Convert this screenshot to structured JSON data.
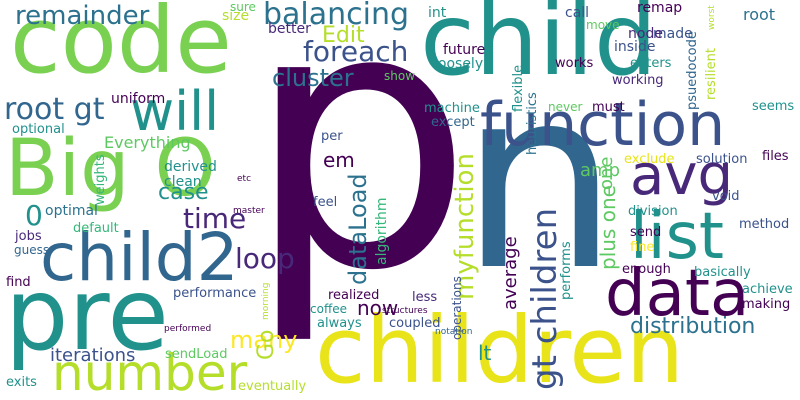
{
  "words": [
    {
      "text": "p",
      "color": "#440154"
    },
    {
      "text": "n",
      "color": "#31668e"
    },
    {
      "text": "child",
      "color": "#21918c"
    },
    {
      "text": "code",
      "color": "#7ad151"
    },
    {
      "text": "children",
      "color": "#e8e419"
    },
    {
      "text": "pre",
      "color": "#21918c"
    },
    {
      "text": "Big O",
      "color": "#7ad151"
    },
    {
      "text": "child2",
      "color": "#31668e"
    },
    {
      "text": "function",
      "color": "#3b528b"
    },
    {
      "text": "data",
      "color": "#440154"
    },
    {
      "text": "list",
      "color": "#21918c"
    },
    {
      "text": "avg",
      "color": "#482878"
    },
    {
      "text": "number",
      "color": "#b5de2b"
    },
    {
      "text": "will",
      "color": "#21918c"
    },
    {
      "text": "remainder",
      "color": "#2c728e"
    },
    {
      "text": "balancing",
      "color": "#2c728e"
    },
    {
      "text": "foreach",
      "color": "#3b528b"
    },
    {
      "text": "cluster",
      "color": "#2c728e"
    },
    {
      "text": "root gt",
      "color": "#31668e"
    },
    {
      "text": "Edit",
      "color": "#b5de2b"
    },
    {
      "text": "loop",
      "color": "#482878"
    },
    {
      "text": "time",
      "color": "#482878"
    },
    {
      "text": "case",
      "color": "#21918c"
    },
    {
      "text": "many",
      "color": "#fde725"
    },
    {
      "text": "distribution",
      "color": "#2c728e"
    },
    {
      "text": "gt children",
      "color": "#3b528b"
    },
    {
      "text": "myfunction",
      "color": "#b5de2b"
    },
    {
      "text": "dataLoad",
      "color": "#2c728e"
    },
    {
      "text": "now",
      "color": "#440154"
    },
    {
      "text": "lt",
      "color": "#21918c"
    },
    {
      "text": "Go",
      "color": "#b5de2b"
    },
    {
      "text": "em",
      "color": "#440154"
    },
    {
      "text": "average",
      "color": "#440154"
    },
    {
      "text": "plus one",
      "color": "#5ec962"
    },
    {
      "text": "iterations",
      "color": "#3b528b"
    },
    {
      "text": "amp",
      "color": "#5ec962"
    },
    {
      "text": "Everything",
      "color": "#5ec962"
    },
    {
      "text": "algorithm",
      "color": "#35b779"
    },
    {
      "text": "0",
      "color": "#21918c"
    },
    {
      "text": "root",
      "color": "#2c728e"
    },
    {
      "text": "uniform",
      "color": "#440154"
    },
    {
      "text": "optimal",
      "color": "#2c728e"
    },
    {
      "text": "derived",
      "color": "#21918c"
    },
    {
      "text": "clean",
      "color": "#21918c"
    },
    {
      "text": "made",
      "color": "#3b528b"
    },
    {
      "text": "size",
      "color": "#b5de2b"
    },
    {
      "text": "sure",
      "color": "#5ec962"
    },
    {
      "text": "int",
      "color": "#21918c"
    },
    {
      "text": "call",
      "color": "#3b528b"
    },
    {
      "text": "remap",
      "color": "#440154"
    },
    {
      "text": "better",
      "color": "#482878"
    },
    {
      "text": "node",
      "color": "#482878"
    },
    {
      "text": "inside",
      "color": "#3b528b"
    },
    {
      "text": "future",
      "color": "#440154"
    },
    {
      "text": "loosely",
      "color": "#21918c"
    },
    {
      "text": "move",
      "color": "#5ec962"
    },
    {
      "text": "enters",
      "color": "#21918c"
    },
    {
      "text": "works",
      "color": "#440154"
    },
    {
      "text": "psuedocode",
      "color": "#31668e"
    },
    {
      "text": "resilient",
      "color": "#b5de2b"
    },
    {
      "text": "worst",
      "color": "#b5de2b"
    },
    {
      "text": "show",
      "color": "#5ec962"
    },
    {
      "text": "flexible",
      "color": "#21918c"
    },
    {
      "text": "working",
      "color": "#482878"
    },
    {
      "text": "machine",
      "color": "#21918c"
    },
    {
      "text": "heuristics",
      "color": "#2c728e"
    },
    {
      "text": "never",
      "color": "#5ec962"
    },
    {
      "text": "must",
      "color": "#440154"
    },
    {
      "text": "seems",
      "color": "#21918c"
    },
    {
      "text": "except",
      "color": "#31668e"
    },
    {
      "text": "exclude",
      "color": "#e8e419"
    },
    {
      "text": "solution",
      "color": "#3b528b"
    },
    {
      "text": "files",
      "color": "#440154"
    },
    {
      "text": "per",
      "color": "#3b528b"
    },
    {
      "text": "division",
      "color": "#21918c"
    },
    {
      "text": "method",
      "color": "#3b528b"
    },
    {
      "text": "void",
      "color": "#3b528b"
    },
    {
      "text": "feel",
      "color": "#3b528b"
    },
    {
      "text": "one",
      "color": "#5ec962"
    },
    {
      "text": "send",
      "color": "#440154"
    },
    {
      "text": "fine",
      "color": "#fde725"
    },
    {
      "text": "performs",
      "color": "#21918c"
    },
    {
      "text": "enough",
      "color": "#440154"
    },
    {
      "text": "basically",
      "color": "#21918c"
    },
    {
      "text": "achieve",
      "color": "#21918c"
    },
    {
      "text": "making",
      "color": "#440154"
    },
    {
      "text": "weights",
      "color": "#35b779"
    },
    {
      "text": "default",
      "color": "#35b779"
    },
    {
      "text": "guess",
      "color": "#31668e"
    },
    {
      "text": "jobs",
      "color": "#482878"
    },
    {
      "text": "master",
      "color": "#440154"
    },
    {
      "text": "etc",
      "color": "#440154"
    },
    {
      "text": "find",
      "color": "#440154"
    },
    {
      "text": "performance",
      "color": "#3b528b"
    },
    {
      "text": "coffee",
      "color": "#21918c"
    },
    {
      "text": "realized",
      "color": "#440154"
    },
    {
      "text": "less",
      "color": "#482878"
    },
    {
      "text": "morning",
      "color": "#b5de2b"
    },
    {
      "text": "operations",
      "color": "#3b528b"
    },
    {
      "text": "structures",
      "color": "#440154"
    },
    {
      "text": "notation",
      "color": "#31668e"
    },
    {
      "text": "coupled",
      "color": "#3b528b"
    },
    {
      "text": "always",
      "color": "#21918c"
    },
    {
      "text": "performed",
      "color": "#440154"
    },
    {
      "text": "optional",
      "color": "#21918c"
    },
    {
      "text": "sendLoad",
      "color": "#5ec962"
    },
    {
      "text": "exits",
      "color": "#21918c"
    },
    {
      "text": "eventually",
      "color": "#b5de2b"
    }
  ]
}
